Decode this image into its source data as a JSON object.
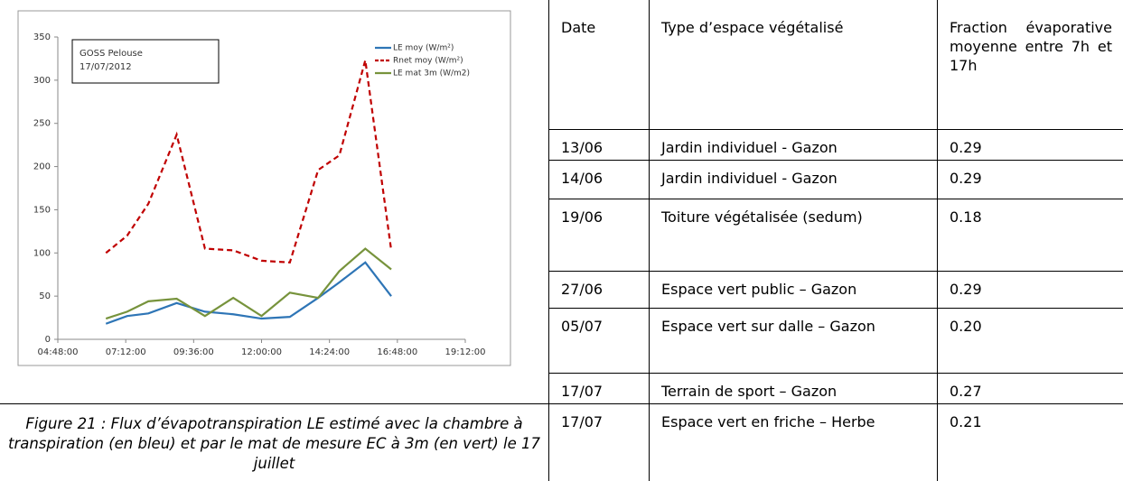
{
  "chart_data": {
    "type": "line",
    "annotation": [
      "GOSS Pelouse",
      "17/07/2012"
    ],
    "x": [
      "06:30:00",
      "07:15:00",
      "08:00:00",
      "09:00:00",
      "10:00:00",
      "11:00:00",
      "12:00:00",
      "13:00:00",
      "14:00:00",
      "14:45:00",
      "15:40:00",
      "16:35:00"
    ],
    "series": [
      {
        "name": "LE moy  (W/m²)",
        "color": "#2e75b6",
        "dash": false,
        "values": [
          18,
          27,
          30,
          42,
          32,
          29,
          24,
          26,
          48,
          66,
          89,
          50
        ]
      },
      {
        "name": "Rnet moy  (W/m²)",
        "color": "#c00000",
        "dash": true,
        "values": [
          100,
          120,
          157,
          237,
          105,
          103,
          91,
          89,
          196,
          213,
          323,
          103
        ]
      },
      {
        "name": "LE mat 3m (W/m2)",
        "color": "#77933c",
        "dash": false,
        "values": [
          24,
          32,
          44,
          47,
          27,
          48,
          27,
          54,
          48,
          79,
          105,
          81
        ]
      }
    ],
    "xlim": [
      "04:48:00",
      "19:12:00"
    ],
    "xticks": [
      "04:48:00",
      "07:12:00",
      "09:36:00",
      "12:00:00",
      "14:24:00",
      "16:48:00",
      "19:12:00"
    ],
    "ylim": [
      0,
      350
    ],
    "yticks": [
      0,
      50,
      100,
      150,
      200,
      250,
      300,
      350
    ],
    "legend": "top-right"
  },
  "caption": "Figure 21  : Flux d’évapotranspiration LE estimé avec la chambre à transpiration (en bleu) et par le mat de mesure EC à 3m (en vert) le 17 juillet",
  "table": {
    "header": [
      "Date",
      "Type d’espace végétalisé",
      "Fraction évaporative moyenne entre 7h et 17h"
    ],
    "rows": [
      [
        "13/06",
        "Jardin individuel - Gazon",
        "0.29"
      ],
      [
        "14/06",
        "Jardin individuel - Gazon",
        "0.29"
      ],
      [
        "19/06",
        "Toiture végétalisée (sedum)",
        "0.18"
      ],
      [
        "27/06",
        "Espace vert public – Gazon",
        "0.29"
      ],
      [
        "05/07",
        "Espace vert sur dalle – Gazon",
        "0.20"
      ],
      [
        "17/07",
        "Terrain de sport – Gazon",
        "0.27"
      ],
      [
        "17/07",
        "Espace vert en friche – Herbe",
        "0.21"
      ]
    ]
  }
}
